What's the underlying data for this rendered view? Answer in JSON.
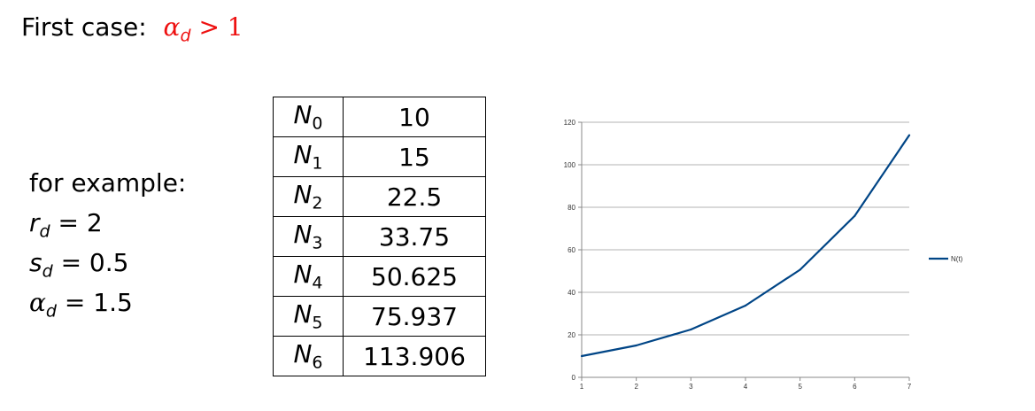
{
  "title": {
    "text": "First case:",
    "math_symbol": "α",
    "math_sub": "d",
    "math_rel": "> 1"
  },
  "example": {
    "heading": "for example:",
    "params": [
      {
        "symbol": "r",
        "sub": "d",
        "value": "= 2"
      },
      {
        "symbol": "s",
        "sub": "d",
        "value": "= 0.5"
      },
      {
        "symbol": "α",
        "sub": "d",
        "value": "= 1.5"
      }
    ]
  },
  "table": {
    "rows": [
      {
        "label": "N",
        "sub": "0",
        "value": "10"
      },
      {
        "label": "N",
        "sub": "1",
        "value": "15"
      },
      {
        "label": "N",
        "sub": "2",
        "value": "22.5"
      },
      {
        "label": "N",
        "sub": "3",
        "value": "33.75"
      },
      {
        "label": "N",
        "sub": "4",
        "value": "50.625"
      },
      {
        "label": "N",
        "sub": "5",
        "value": "75.937"
      },
      {
        "label": "N",
        "sub": "6",
        "value": "113.906"
      }
    ]
  },
  "chart_data": {
    "type": "line",
    "title": "",
    "xlabel": "",
    "ylabel": "",
    "x": [
      1,
      2,
      3,
      4,
      5,
      6,
      7
    ],
    "series": [
      {
        "name": "N(t)",
        "values": [
          10,
          15,
          22.5,
          33.75,
          50.625,
          75.937,
          113.906
        ]
      }
    ],
    "xticks": [
      "1",
      "2",
      "3",
      "4",
      "5",
      "6",
      "7"
    ],
    "yticks": [
      "0",
      "20",
      "40",
      "60",
      "80",
      "100",
      "120"
    ],
    "ylim": [
      0,
      120
    ],
    "grid": "horizontal",
    "legend": "right",
    "colors": {
      "line": "#004586",
      "grid": "#b3b3b3"
    }
  }
}
